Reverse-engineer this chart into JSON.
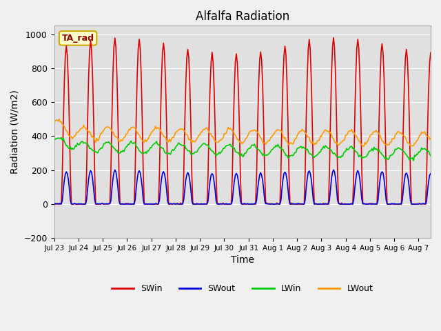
{
  "title": "Alfalfa Radiation",
  "xlabel": "Time",
  "ylabel": "Radiation (W/m2)",
  "ylim": [
    -200,
    1050
  ],
  "xlim_days": 15.5,
  "annotation_text": "TA_rad",
  "legend_entries": [
    "SWin",
    "SWout",
    "LWin",
    "LWout"
  ],
  "legend_colors": [
    "#dd0000",
    "#0000dd",
    "#00cc00",
    "#ff9900"
  ],
  "background_color": "#e0e0e0",
  "grid_color": "#ffffff",
  "tick_labels": [
    "Jul 23",
    "Jul 24",
    "Jul 25",
    "Jul 26",
    "Jul 27",
    "Jul 28",
    "Jul 29",
    "Jul 30",
    "Jul 31",
    "Aug 1",
    "Aug 2",
    "Aug 3",
    "Aug 4",
    "Aug 5",
    "Aug 6",
    "Aug 7"
  ],
  "tick_positions": [
    0,
    1,
    2,
    3,
    4,
    5,
    6,
    7,
    8,
    9,
    10,
    11,
    12,
    13,
    14,
    15
  ]
}
